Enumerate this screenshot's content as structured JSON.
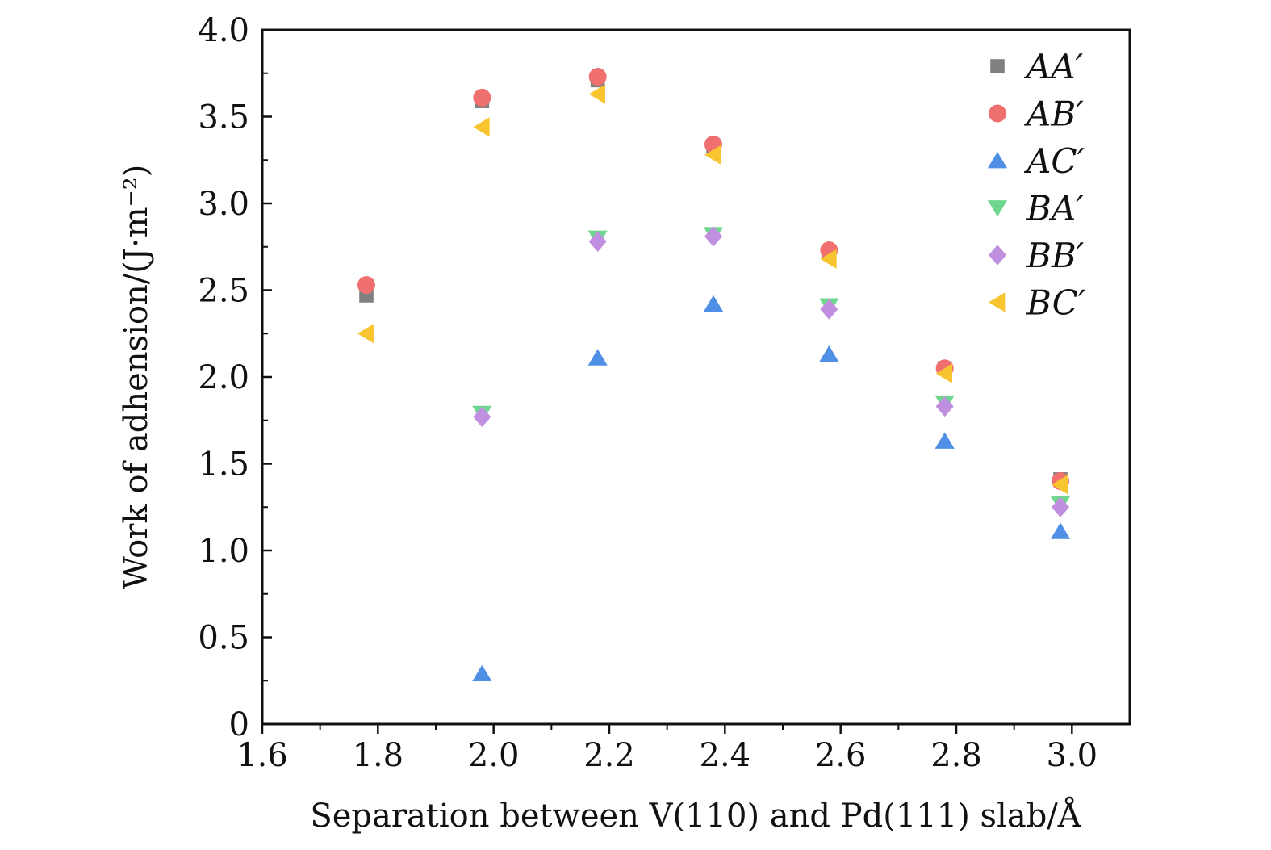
{
  "chart_data": {
    "type": "scatter",
    "title": "",
    "xlabel": "Separation between V(110) and Pd(111) slab/Å",
    "ylabel": "Work of adhension/(J·m⁻²)",
    "xlim": [
      1.6,
      3.1
    ],
    "ylim": [
      0,
      4.0
    ],
    "xticks": [
      1.6,
      1.8,
      2.0,
      2.2,
      2.4,
      2.6,
      2.8,
      3.0
    ],
    "xtick_labels": [
      "1.6",
      "1.8",
      "2.0",
      "2.2",
      "2.4",
      "2.6",
      "2.8",
      "3.0"
    ],
    "yticks": [
      0,
      0.5,
      1.0,
      1.5,
      2.0,
      2.5,
      3.0,
      3.5,
      4.0
    ],
    "ytick_labels": [
      "0",
      "0.5",
      "1.0",
      "1.5",
      "2.0",
      "2.5",
      "3.0",
      "3.5",
      "4.0"
    ],
    "legend_position": "top-right",
    "x": [
      1.78,
      1.98,
      2.18,
      2.38,
      2.58,
      2.78,
      2.98
    ],
    "series": [
      {
        "name": "AA′",
        "marker": "square",
        "color": "#808080",
        "values": [
          2.47,
          3.59,
          3.71,
          3.33,
          2.72,
          2.05,
          1.41
        ]
      },
      {
        "name": "AB′",
        "marker": "circle",
        "color": "#f07070",
        "values": [
          2.53,
          3.61,
          3.73,
          3.34,
          2.73,
          2.05,
          1.4
        ]
      },
      {
        "name": "AC′",
        "marker": "triangle-up",
        "color": "#4f8fe6",
        "values": [
          null,
          0.29,
          2.11,
          2.42,
          2.13,
          1.63,
          1.11
        ]
      },
      {
        "name": "BA′",
        "marker": "triangle-down",
        "color": "#6fd68f",
        "values": [
          null,
          1.79,
          2.8,
          2.82,
          2.41,
          1.85,
          1.27
        ]
      },
      {
        "name": "BB′",
        "marker": "diamond",
        "color": "#c08fe0",
        "values": [
          null,
          1.77,
          2.78,
          2.81,
          2.39,
          1.83,
          1.25
        ]
      },
      {
        "name": "BC′",
        "marker": "triangle-left",
        "color": "#f8c430",
        "values": [
          2.25,
          3.44,
          3.63,
          3.28,
          2.68,
          2.02,
          1.38
        ]
      }
    ]
  }
}
